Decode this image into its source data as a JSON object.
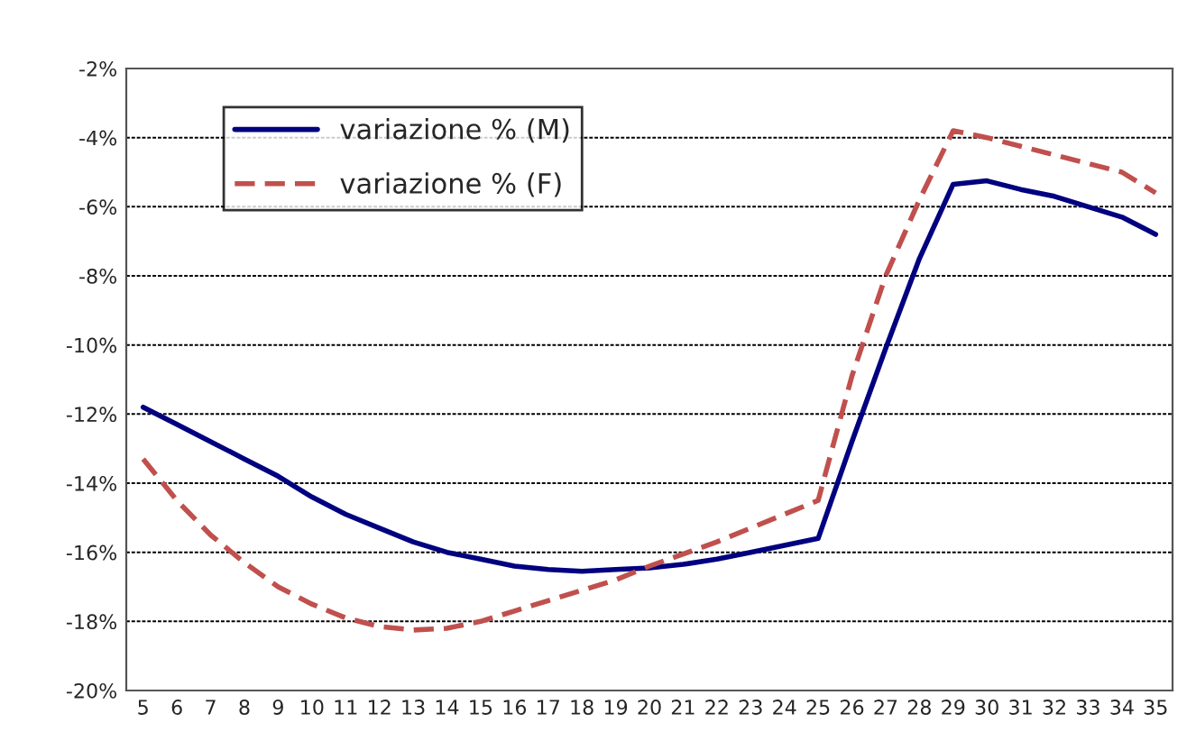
{
  "chart_data": {
    "type": "line",
    "categories": [
      "5",
      "6",
      "7",
      "8",
      "9",
      "10",
      "11",
      "12",
      "13",
      "14",
      "15",
      "16",
      "17",
      "18",
      "19",
      "20",
      "21",
      "22",
      "23",
      "24",
      "25",
      "26",
      "27",
      "28",
      "29",
      "30",
      "31",
      "32",
      "33",
      "34",
      "35"
    ],
    "series": [
      {
        "name": "variazione % (M)",
        "color": "#000080",
        "line_style": "solid",
        "values": [
          -11.8,
          -12.3,
          -12.8,
          -13.3,
          -13.8,
          -14.4,
          -14.9,
          -15.3,
          -15.7,
          -16.0,
          -16.2,
          -16.4,
          -16.5,
          -16.55,
          -16.5,
          -16.45,
          -16.35,
          -16.2,
          -16.0,
          -15.8,
          -15.6,
          -12.8,
          -10.1,
          -7.5,
          -5.35,
          -5.25,
          -5.5,
          -5.7,
          -6.0,
          -6.3,
          -6.8
        ]
      },
      {
        "name": "variazione % (F)",
        "color": "#c0504d",
        "line_style": "dashed",
        "values": [
          -13.3,
          -14.5,
          -15.5,
          -16.3,
          -17.0,
          -17.5,
          -17.9,
          -18.15,
          -18.25,
          -18.2,
          -18.0,
          -17.7,
          -17.4,
          -17.1,
          -16.8,
          -16.4,
          -16.05,
          -15.7,
          -15.3,
          -14.9,
          -14.5,
          -10.9,
          -8.0,
          -5.8,
          -3.8,
          -4.0,
          -4.25,
          -4.5,
          -4.75,
          -5.0,
          -5.6
        ]
      }
    ],
    "ylim": [
      -20,
      -2
    ],
    "yticks": [
      {
        "value": -20,
        "label": "-20%"
      },
      {
        "value": -18,
        "label": "-18%"
      },
      {
        "value": -16,
        "label": "-16%"
      },
      {
        "value": -14,
        "label": "-14%"
      },
      {
        "value": -12,
        "label": "-12%"
      },
      {
        "value": -10,
        "label": "-10%"
      },
      {
        "value": -8,
        "label": "-8%"
      },
      {
        "value": -6,
        "label": "-6%"
      },
      {
        "value": -4,
        "label": "-4%"
      },
      {
        "value": -2,
        "label": "-2%"
      }
    ],
    "grid": "y",
    "legend": "top left",
    "marker": "none"
  }
}
